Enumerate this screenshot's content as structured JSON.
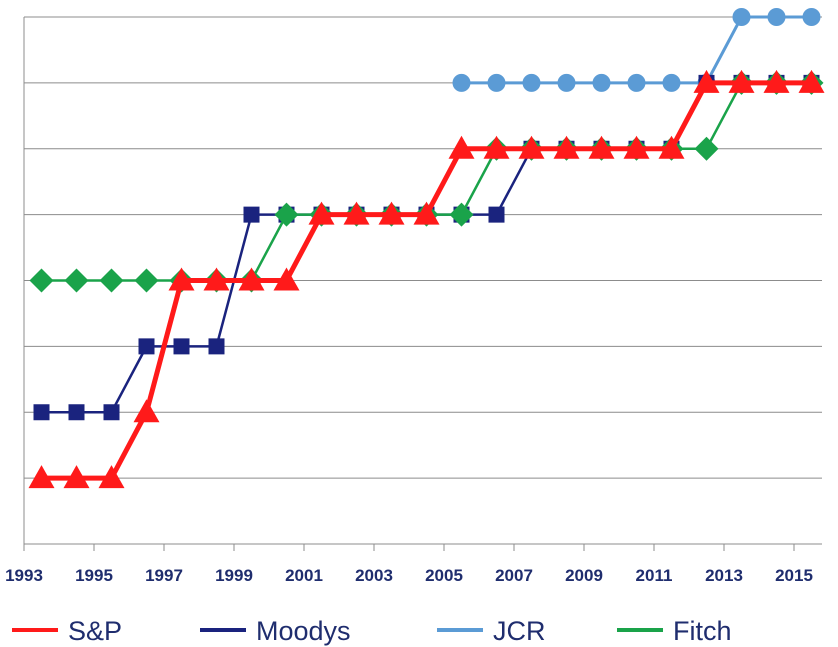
{
  "chart_data": {
    "type": "line",
    "x_tick_labels": [
      "1993",
      "1995",
      "1997",
      "1999",
      "2001",
      "2003",
      "2005",
      "2007",
      "2009",
      "2011",
      "2013",
      "2015"
    ],
    "x_tick_values": [
      1993,
      1995,
      1997,
      1999,
      2001,
      2003,
      2005,
      2007,
      2009,
      2011,
      2013,
      2015
    ],
    "xlim": [
      1993,
      2015.8
    ],
    "ylim": [
      0,
      8
    ],
    "y_gridlines": [
      1,
      2,
      3,
      4,
      5,
      6,
      7,
      8
    ],
    "grid": true,
    "legend_position": "bottom",
    "series": [
      {
        "name": "S&P",
        "color": "#ff1a1a",
        "marker": "triangle",
        "x": [
          1993.5,
          1994.5,
          1995.5,
          1996.5,
          1997.5,
          1998.5,
          1999.5,
          2000.5,
          2001.5,
          2002.5,
          2003.5,
          2004.5,
          2005.5,
          2006.5,
          2007.5,
          2008.5,
          2009.5,
          2010.5,
          2011.5,
          2012.5,
          2013.5,
          2014.5,
          2015.5
        ],
        "values": [
          1,
          1,
          1,
          2,
          4,
          4,
          4,
          4,
          5,
          5,
          5,
          5,
          6,
          6,
          6,
          6,
          6,
          6,
          6,
          7,
          7,
          7,
          7
        ]
      },
      {
        "name": "Moodys",
        "color": "#1a237e",
        "marker": "square",
        "x": [
          1993.5,
          1994.5,
          1995.5,
          1996.5,
          1997.5,
          1998.5,
          1999.5,
          2000.5,
          2001.5,
          2002.5,
          2003.5,
          2004.5,
          2005.5,
          2006.5,
          2007.5,
          2008.5,
          2009.5,
          2010.5,
          2011.5,
          2012.5,
          2013.5,
          2014.5,
          2015.5
        ],
        "values": [
          2,
          2,
          2,
          3,
          3,
          3,
          5,
          5,
          5,
          5,
          5,
          5,
          5,
          5,
          6,
          6,
          6,
          6,
          6,
          7,
          7,
          7,
          7
        ]
      },
      {
        "name": "JCR",
        "color": "#5b9bd5",
        "marker": "circle",
        "x": [
          2005.5,
          2006.5,
          2007.5,
          2008.5,
          2009.5,
          2010.5,
          2011.5,
          2012.5,
          2013.5,
          2014.5,
          2015.5
        ],
        "values": [
          7,
          7,
          7,
          7,
          7,
          7,
          7,
          7,
          8,
          8,
          8
        ]
      },
      {
        "name": "Fitch",
        "color": "#1aa34a",
        "marker": "diamond",
        "x": [
          1993.5,
          1994.5,
          1995.5,
          1996.5,
          1997.5,
          1998.5,
          1999.5,
          2000.5,
          2001.5,
          2002.5,
          2003.5,
          2004.5,
          2005.5,
          2006.5,
          2007.5,
          2008.5,
          2009.5,
          2010.5,
          2011.5,
          2012.5,
          2013.5,
          2014.5,
          2015.5
        ],
        "values": [
          4,
          4,
          4,
          4,
          4,
          4,
          4,
          5,
          5,
          5,
          5,
          5,
          5,
          6,
          6,
          6,
          6,
          6,
          6,
          6,
          7,
          7,
          7
        ]
      }
    ]
  },
  "legend": {
    "items": [
      {
        "label": "S&P",
        "color": "#ff1a1a"
      },
      {
        "label": "Moodys",
        "color": "#1a237e"
      },
      {
        "label": "JCR",
        "color": "#5b9bd5"
      },
      {
        "label": "Fitch",
        "color": "#1aa34a"
      }
    ]
  }
}
